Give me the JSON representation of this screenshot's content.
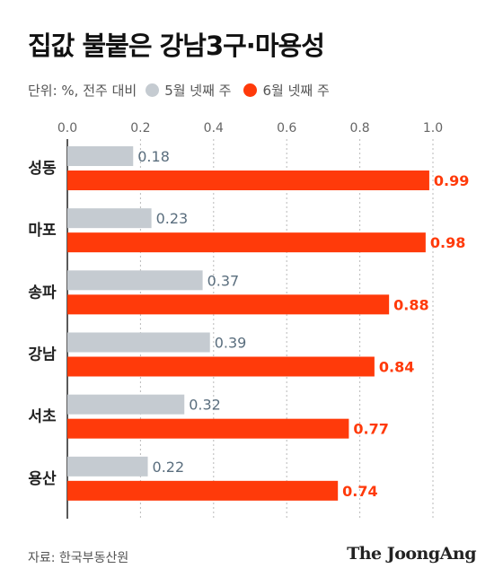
{
  "title": "집값 불붙은 강남3구·마용성",
  "legend": {
    "unit": "단위: %, 전주 대비",
    "items": [
      {
        "label": "5월 넷째 주",
        "color": "#c5cbd1"
      },
      {
        "label": "6월 넷째 주",
        "color": "#ff3a0a"
      }
    ]
  },
  "chart_data": {
    "type": "bar",
    "orientation": "horizontal",
    "categories": [
      "성동",
      "마포",
      "송파",
      "강남",
      "서초",
      "용산"
    ],
    "series": [
      {
        "name": "5월 넷째 주",
        "values": [
          0.18,
          0.23,
          0.37,
          0.39,
          0.32,
          0.22
        ],
        "color": "#c5cbd1"
      },
      {
        "name": "6월 넷째 주",
        "values": [
          0.99,
          0.98,
          0.88,
          0.84,
          0.77,
          0.74
        ],
        "color": "#ff3a0a"
      }
    ],
    "xlim": [
      0,
      1.0
    ],
    "xticks": [
      "0.0",
      "0.2",
      "0.4",
      "0.6",
      "0.8",
      "1.0"
    ],
    "xtick_values": [
      0,
      0.2,
      0.4,
      0.6,
      0.8,
      1.0
    ],
    "grid": true,
    "legend_position": "top-left",
    "label_colors": [
      "#5a6e7e",
      "#ff3a0a"
    ]
  },
  "source": "자료: 한국부동산원",
  "logo": "The JoongAng"
}
